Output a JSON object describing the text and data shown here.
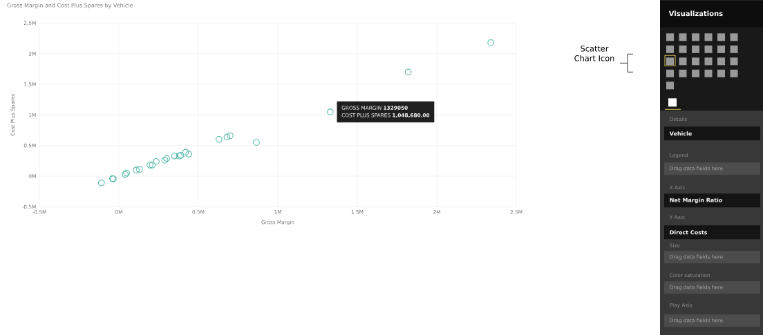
{
  "chart_data": {
    "type": "scatter",
    "title": "Gross Margin and Cost Plus Spares by Vehicle",
    "xlabel": "Gross Margin",
    "ylabel": "Cost Plus Spares",
    "xlim": [
      -0.5,
      2.5
    ],
    "ylim": [
      -0.5,
      2.5
    ],
    "xticks": [
      {
        "value": -0.5,
        "label": "-0.5M"
      },
      {
        "value": 0,
        "label": "0M"
      },
      {
        "value": 0.5,
        "label": "0.5M"
      },
      {
        "value": 1,
        "label": "1M"
      },
      {
        "value": 1.5,
        "label": "1.5M"
      },
      {
        "value": 2,
        "label": "2M"
      },
      {
        "value": 2.5,
        "label": "2.5M"
      }
    ],
    "yticks": [
      {
        "value": -0.5,
        "label": "-0.5M"
      },
      {
        "value": 0,
        "label": "0M"
      },
      {
        "value": 0.5,
        "label": "0.5M"
      },
      {
        "value": 1,
        "label": "1M"
      },
      {
        "value": 1.5,
        "label": "1.5M"
      },
      {
        "value": 2,
        "label": "2M"
      },
      {
        "value": 2.5,
        "label": "2.5M"
      }
    ],
    "grid": true,
    "marker": "circle",
    "series": [
      {
        "color": "#4db6a6",
        "x": [
          -0.11,
          -0.04,
          -0.035,
          0.04,
          0.048,
          0.11,
          0.13,
          0.196,
          0.21,
          0.235,
          0.29,
          0.3,
          0.35,
          0.38,
          0.39,
          0.42,
          0.44,
          0.63,
          0.68,
          0.7,
          0.865,
          1.33,
          1.82,
          2.34
        ],
        "values": [
          -0.11,
          -0.04,
          -0.045,
          0.03,
          0.05,
          0.1,
          0.11,
          0.18,
          0.18,
          0.24,
          0.26,
          0.29,
          0.33,
          0.33,
          0.34,
          0.39,
          0.36,
          0.6,
          0.64,
          0.66,
          0.55,
          1.05,
          1.7,
          2.18
        ]
      }
    ],
    "annotations": [
      {
        "text": "GROSS MARGIN **1329050**",
        "x": 1.33,
        "y": 1.05
      },
      {
        "text": "COST PLUS SPARES **1,048,680.00**",
        "x": 1.33,
        "y": 1.05
      },
      "Scatter Chart Icon",
      "Visualizations",
      "Details",
      "Vehicle",
      "Legend",
      "Drag data fields here",
      "X Axis",
      "Net Margin Ratio",
      "Y Axis",
      "Direct Costs",
      "Size",
      "Drag data fields here",
      "Color saturation",
      "Drag data fields here",
      "Play Axis",
      "Drag data fields here"
    ]
  }
}
